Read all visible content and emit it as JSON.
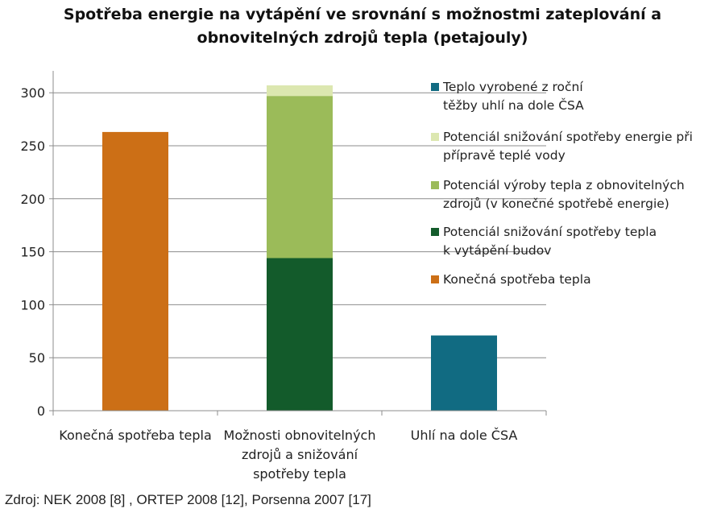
{
  "title": {
    "line1": "Spotřeba energie na vytápění ve srovnání s možnostmi zateplování a",
    "line2": "obnovitelných zdrojů tepla (petajouly)"
  },
  "source": "Zdroj: NEK 2008 [8] , ORTEP 2008 [12], Porsenna 2007 [17]",
  "chart_data": {
    "type": "bar",
    "stacked": true,
    "title": "Spotřeba energie na vytápění ve srovnání s možnostmi zateplování a obnovitelných zdrojů tepla (petajouly)",
    "categories": [
      [
        "Konečná spotřeba tepla"
      ],
      [
        "Možnosti obnovitelných",
        "zdrojů a snižování",
        "spotřeby tepla"
      ],
      [
        "Uhlí na dole ČSA"
      ]
    ],
    "ylim": [
      0,
      320
    ],
    "yticks": [
      0,
      50,
      100,
      150,
      200,
      250,
      300
    ],
    "grid": true,
    "legend_position": "right",
    "series": [
      {
        "name": "Konečná spotřeba tepla",
        "legend_lines": [
          "Konečná spotřeba tepla"
        ],
        "color": "#CC6F16",
        "values": [
          263,
          0,
          0
        ]
      },
      {
        "name": "Potenciál snižování spotřeby tepla k vytápění budov",
        "legend_lines": [
          "Potenciál snižování spotřeby tepla",
          "k vytápění budov"
        ],
        "color": "#135B2B",
        "values": [
          0,
          144,
          0
        ]
      },
      {
        "name": "Potenciál výroby tepla z obnovitelných zdrojů (v konečné spotřebě energie)",
        "legend_lines": [
          "Potenciál výroby tepla z obnovitelných",
          "zdrojů (v konečné spotřebě energie)"
        ],
        "color": "#9BBB59",
        "values": [
          0,
          153,
          0
        ]
      },
      {
        "name": "Potenciál snižování spotřeby energie při přípravě teplé vody",
        "legend_lines": [
          "Potenciál snižování spotřeby energie při",
          "přípravě teplé vody"
        ],
        "color": "#DCE7B0",
        "values": [
          0,
          10,
          0
        ]
      },
      {
        "name": "Teplo vyrobené z roční těžby uhlí na dole ČSA",
        "legend_lines": [
          "Teplo vyrobené z roční",
          "těžby uhlí na dole ČSA"
        ],
        "color": "#116B82",
        "values": [
          0,
          0,
          71
        ]
      }
    ],
    "legend_order": [
      4,
      3,
      2,
      1,
      0
    ]
  }
}
